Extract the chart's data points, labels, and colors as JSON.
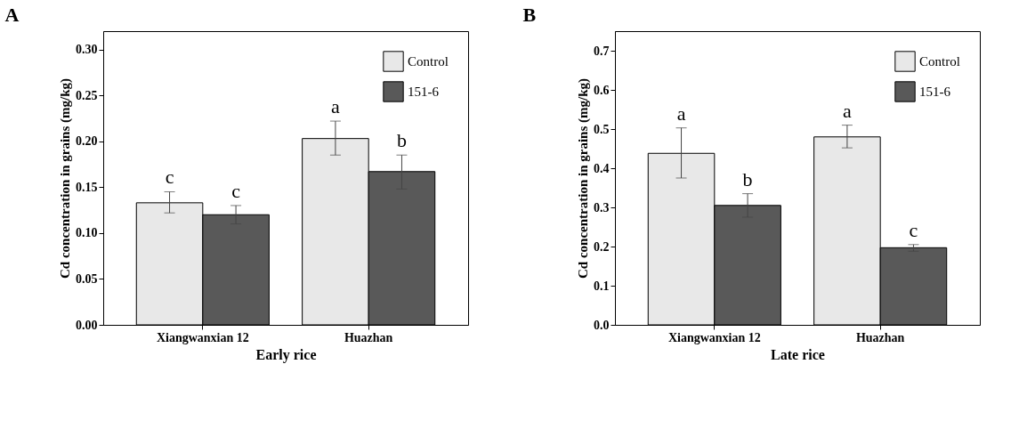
{
  "chart_data": [
    {
      "type": "bar",
      "title": "A",
      "xlabel": "Early rice",
      "ylabel": "Cd concentration in grains (mg/kg)",
      "categories": [
        "Xiangwanxian 12",
        "Huazhan"
      ],
      "ylim": [
        0,
        0.32
      ],
      "yticks": [
        {
          "value": 0,
          "label": "0.00"
        },
        0.05,
        {
          "value": 0.1,
          "label": "0.10"
        },
        0.15,
        {
          "value": 0.2,
          "label": "0.20"
        },
        0.25,
        {
          "value": 0.3,
          "label": "0.30"
        }
      ],
      "grid": false,
      "legend": "top right",
      "series": [
        {
          "name": "Control",
          "color": "#e8e8e8",
          "values": [
            0.133,
            0.203
          ],
          "errors": [
            [
              0.122,
              0.145
            ],
            [
              0.185,
              0.222
            ]
          ],
          "value_labels": [
            "c",
            "a"
          ]
        },
        {
          "name": "151-6",
          "color": "#595959",
          "values": [
            0.12,
            0.167
          ],
          "errors": [
            [
              0.11,
              0.13
            ],
            [
              0.148,
              0.185
            ]
          ],
          "value_labels": [
            "c",
            "b"
          ]
        }
      ]
    },
    {
      "type": "bar",
      "title": "B",
      "xlabel": "Late rice",
      "ylabel": "Cd concentration in grains (mg/kg)",
      "categories": [
        "Xiangwanxian 12",
        "Huazhan"
      ],
      "ylim": [
        0,
        0.75
      ],
      "yticks": [
        {
          "value": 0,
          "label": "0.0"
        },
        0.1,
        0.2,
        0.3,
        0.4,
        0.5,
        0.6,
        0.7
      ],
      "grid": false,
      "legend": "top right",
      "series": [
        {
          "name": "Control",
          "color": "#e8e8e8",
          "values": [
            0.438,
            0.48
          ],
          "errors": [
            [
              0.375,
              0.503
            ],
            [
              0.452,
              0.51
            ]
          ],
          "value_labels": [
            "a",
            "a"
          ]
        },
        {
          "name": "151-6",
          "color": "#595959",
          "values": [
            0.305,
            0.197
          ],
          "errors": [
            [
              0.275,
              0.335
            ],
            [
              0.188,
              0.205
            ]
          ],
          "value_labels": [
            "b",
            "c"
          ]
        }
      ]
    }
  ]
}
